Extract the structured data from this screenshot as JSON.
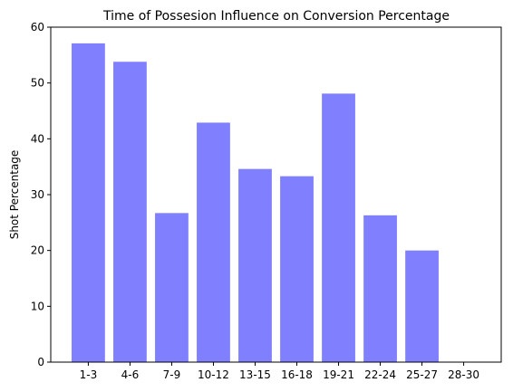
{
  "chart_data": {
    "type": "bar",
    "title": "Time of Possesion Influence on Conversion Percentage",
    "xlabel": "",
    "ylabel": "Shot Percentage",
    "categories": [
      "1-3",
      "4-6",
      "7-9",
      "10-12",
      "13-15",
      "16-18",
      "19-21",
      "22-24",
      "25-27",
      "28-30"
    ],
    "values": [
      57.1,
      53.8,
      26.7,
      42.9,
      34.6,
      33.3,
      48.1,
      26.3,
      20.0,
      0
    ],
    "ylim": [
      0,
      60
    ],
    "yticks": [
      0,
      10,
      20,
      30,
      40,
      50,
      60
    ],
    "bar_color": "#8080ff",
    "grid": false,
    "legend": "none"
  }
}
